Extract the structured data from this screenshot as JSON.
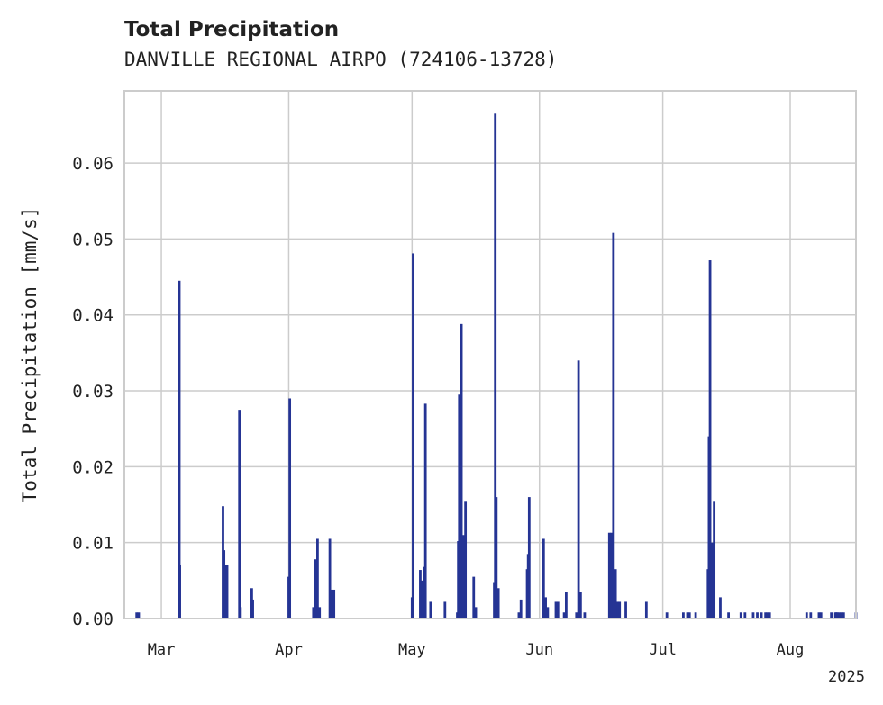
{
  "chart_data": {
    "type": "bar",
    "title": "Total Precipitation",
    "subtitle": "DANVILLE REGIONAL AIRPO (724106-13728)",
    "ylabel": "Total Precipitation [mm/s]",
    "xlabel": "",
    "ylim": [
      0,
      0.0695
    ],
    "yticks": [
      0.0,
      0.01,
      0.02,
      0.03,
      0.04,
      0.05,
      0.06
    ],
    "ytick_labels": [
      "0.00",
      "0.01",
      "0.02",
      "0.03",
      "0.04",
      "0.05",
      "0.06"
    ],
    "xlim": [
      "2025-02-20",
      "2025-08-17"
    ],
    "xticks": [
      "2025-03-01",
      "2025-04-01",
      "2025-05-01",
      "2025-06-01",
      "2025-07-01",
      "2025-08-01"
    ],
    "xtick_labels": [
      "Mar",
      "Apr",
      "May",
      "Jun",
      "Jul",
      "Aug"
    ],
    "year_label": "2025",
    "grid": true,
    "bar_color": "#253494",
    "series": [
      {
        "x": [
          "2025-02-23T00:00",
          "2025-02-23T12:00",
          "2025-03-05T06:00",
          "2025-03-05T09:00",
          "2025-03-05T12:00",
          "2025-03-16T00:00",
          "2025-03-16T06:00",
          "2025-03-16T12:00",
          "2025-03-17T00:00",
          "2025-03-20T00:00",
          "2025-03-20T06:00",
          "2025-03-23T00:00",
          "2025-03-23T06:00",
          "2025-04-01T00:00",
          "2025-04-01T06:00",
          "2025-04-07T00:00",
          "2025-04-07T12:00",
          "2025-04-08T00:00",
          "2025-04-08T12:00",
          "2025-04-11T00:00",
          "2025-04-11T12:00",
          "2025-04-12T00:00",
          "2025-05-01T00:00",
          "2025-05-01T06:00",
          "2025-05-03T00:00",
          "2025-05-03T12:00",
          "2025-05-04T00:00",
          "2025-05-04T06:00",
          "2025-05-05T12:00",
          "2025-05-09T00:00",
          "2025-05-12T00:00",
          "2025-05-12T06:00",
          "2025-05-12T12:00",
          "2025-05-13T00:00",
          "2025-05-13T06:00",
          "2025-05-13T12:00",
          "2025-05-14T00:00",
          "2025-05-16T00:00",
          "2025-05-16T12:00",
          "2025-05-21T00:00",
          "2025-05-21T06:00",
          "2025-05-21T12:00",
          "2025-05-22T00:00",
          "2025-05-27T00:00",
          "2025-05-27T12:00",
          "2025-05-29T00:00",
          "2025-05-29T06:00",
          "2025-05-29T12:00",
          "2025-06-02T00:00",
          "2025-06-02T12:00",
          "2025-06-03T00:00",
          "2025-06-05T00:00",
          "2025-06-05T12:00",
          "2025-06-07T00:00",
          "2025-06-07T12:00",
          "2025-06-10T00:00",
          "2025-06-10T12:00",
          "2025-06-11T00:00",
          "2025-06-12T00:00",
          "2025-06-18T00:00",
          "2025-06-18T12:00",
          "2025-06-19T00:00",
          "2025-06-19T12:00",
          "2025-06-20T00:00",
          "2025-06-20T12:00",
          "2025-06-22T00:00",
          "2025-06-27T00:00",
          "2025-07-07T00:00",
          "2025-07-02T00:00",
          "2025-07-06T00:00",
          "2025-07-07T12:00",
          "2025-07-09T00:00",
          "2025-07-12T00:00",
          "2025-07-12T06:00",
          "2025-07-12T12:00",
          "2025-07-13T00:00",
          "2025-07-13T12:00",
          "2025-07-15T00:00",
          "2025-07-17T00:00",
          "2025-07-20T00:00",
          "2025-07-21T00:00",
          "2025-07-23T00:00",
          "2025-07-24T00:00",
          "2025-07-25T00:00",
          "2025-07-26T00:00",
          "2025-07-26T12:00",
          "2025-07-27T00:00",
          "2025-08-05T00:00",
          "2025-08-06T00:00",
          "2025-08-08T00:00",
          "2025-08-08T12:00",
          "2025-08-11T00:00",
          "2025-08-12T00:00",
          "2025-08-12T06:00",
          "2025-08-12T12:00",
          "2025-08-13T00:00",
          "2025-08-13T12:00",
          "2025-08-14T00:00",
          "2025-08-17T00:00",
          "2025-08-17T12:00",
          "2025-08-18T00:00",
          "2025-08-18T12:00",
          "2025-08-19T00:00"
        ],
        "values": [
          0.0008,
          0.0008,
          0.024,
          0.0445,
          0.007,
          0.0148,
          0.009,
          0.007,
          0.007,
          0.0275,
          0.0015,
          0.004,
          0.0025,
          0.0055,
          0.029,
          0.0015,
          0.0078,
          0.0105,
          0.0015,
          0.0105,
          0.0038,
          0.0038,
          0.0028,
          0.0481,
          0.0064,
          0.005,
          0.0068,
          0.0283,
          0.0022,
          0.0022,
          0.0008,
          0.0102,
          0.0295,
          0.0388,
          0.0053,
          0.011,
          0.0155,
          0.0055,
          0.0015,
          0.0048,
          0.0665,
          0.016,
          0.004,
          0.0008,
          0.0025,
          0.0065,
          0.0085,
          0.016,
          0.0105,
          0.0028,
          0.0015,
          0.0022,
          0.0022,
          0.0008,
          0.0035,
          0.0008,
          0.034,
          0.0035,
          0.0008,
          0.0113,
          0.0113,
          0.0508,
          0.0065,
          0.0022,
          0.0022,
          0.0022,
          0.0022,
          0.0008,
          0.0008,
          0.0008,
          0.0008,
          0.0008,
          0.0065,
          0.024,
          0.0472,
          0.01,
          0.0155,
          0.0028,
          0.0008,
          0.0008,
          0.0008,
          0.0008,
          0.0008,
          0.0008,
          0.0008,
          0.0008,
          0.0008,
          0.0008,
          0.0008,
          0.0008,
          0.0008,
          0.0008,
          0.0008,
          0.0008,
          0.0008,
          0.0008,
          0.0008,
          0.0008,
          0.0008,
          0.0008,
          0.0008,
          0.0008,
          0.0008
        ]
      }
    ]
  }
}
